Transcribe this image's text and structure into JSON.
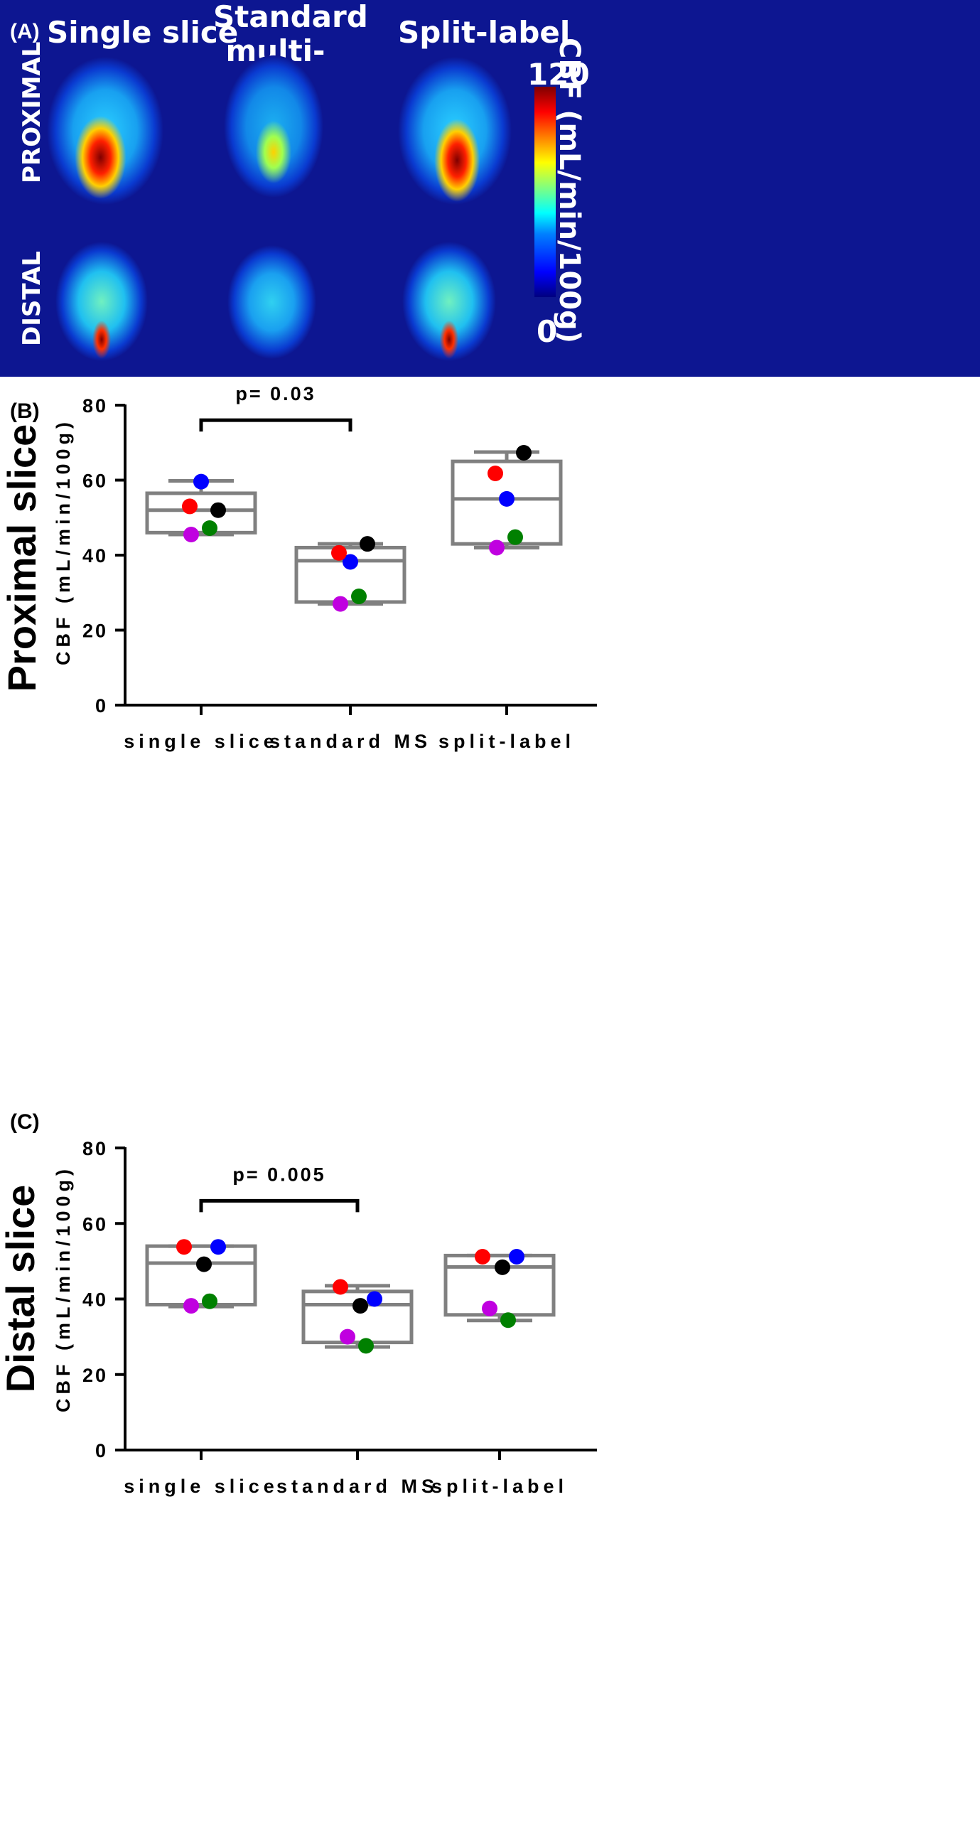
{
  "panel_a": {
    "label": "(A)",
    "columns": [
      "Single slice",
      "Standard\nmulti-slice",
      "Split-label"
    ],
    "rows": [
      "PROXIMAL",
      "DISTAL"
    ],
    "colorbar": {
      "max": "120",
      "min": "0",
      "title": "CBF (mL/min/100g)",
      "colormap": "jet"
    }
  },
  "chart_data": [
    {
      "type": "box",
      "panel_label": "(B)",
      "row_title": "Proximal slice",
      "ylabel": "CBF (mL/min/100g)",
      "xlabel": "",
      "categories": [
        "single slice",
        "standard MS",
        "split-label"
      ],
      "ylim": [
        0,
        80
      ],
      "yticks": [
        0,
        20,
        40,
        60,
        80
      ],
      "boxes": [
        {
          "min": 45.5,
          "q1": 46,
          "median": 52,
          "q3": 56.5,
          "max": 59.8
        },
        {
          "min": 27,
          "q1": 27.5,
          "median": 38.5,
          "q3": 42,
          "max": 43
        },
        {
          "min": 42,
          "q1": 43,
          "median": 55,
          "q3": 65,
          "max": 67.5
        }
      ],
      "points": {
        "blue": [
          59.6,
          38.2,
          55
        ],
        "red": [
          53,
          40.6,
          61.8
        ],
        "black": [
          52,
          43,
          67.3
        ],
        "green": [
          47.2,
          29,
          44.8
        ],
        "purple": [
          45.5,
          27,
          42
        ]
      },
      "significance": {
        "from": 0,
        "to": 1,
        "label": "p= 0.03",
        "y": 76
      },
      "colors": {
        "box": "#808080",
        "blue": "#0000ff",
        "red": "#ff0000",
        "black": "#000000",
        "green": "#008000",
        "purple": "#c000e0"
      }
    },
    {
      "type": "box",
      "panel_label": "(C)",
      "row_title": "Distal slice",
      "ylabel": "CBF (mL/min/100g)",
      "xlabel": "",
      "categories": [
        "single slice",
        "standard MS",
        "split-label"
      ],
      "ylim": [
        0,
        80
      ],
      "yticks": [
        0,
        20,
        40,
        60,
        80
      ],
      "boxes": [
        {
          "min": 38,
          "q1": 38.5,
          "median": 49.5,
          "q3": 54,
          "max": 54
        },
        {
          "min": 27.3,
          "q1": 28.5,
          "median": 38.5,
          "q3": 42,
          "max": 43.5
        },
        {
          "min": 34.3,
          "q1": 35.8,
          "median": 48.5,
          "q3": 51.5,
          "max": 51.5
        }
      ],
      "points": {
        "red": [
          53.8,
          43.2,
          51.2
        ],
        "blue": [
          53.8,
          40,
          51.2
        ],
        "black": [
          49.2,
          38.2,
          48.4
        ],
        "green": [
          39.4,
          27.6,
          34.4
        ],
        "purple": [
          38.2,
          30,
          37.5
        ]
      },
      "significance": {
        "from": 0,
        "to": 1,
        "label": "p= 0.005",
        "y": 66
      },
      "colors": {
        "box": "#808080",
        "blue": "#0000ff",
        "red": "#ff0000",
        "black": "#000000",
        "green": "#008000",
        "purple": "#c000e0"
      }
    }
  ]
}
